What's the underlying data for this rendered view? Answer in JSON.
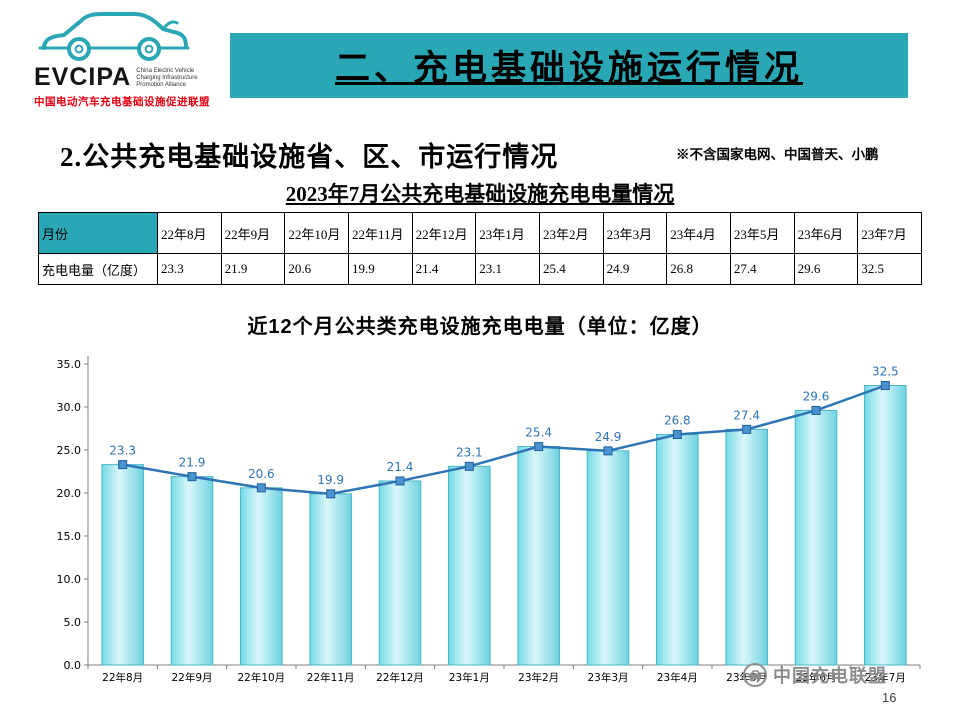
{
  "logo": {
    "acronym": "EVCIPA",
    "org_en": "China Electric Vehicle Charging Infrastructure Promotion Alliance",
    "org_cn": "中国电动汽车充电基础设施促进联盟"
  },
  "banner": {
    "title": "二、充电基础设施运行情况"
  },
  "subtitle": {
    "text": "2.公共充电基础设施省、区、市运行情况",
    "note": "※不含国家电网、中国普天、小鹏"
  },
  "table": {
    "title": "2023年7月公共充电基础设施充电电量情况",
    "row_headers": [
      "月份",
      "充电电量（亿度）"
    ],
    "columns": [
      "22年8月",
      "22年9月",
      "22年10月",
      "22年11月",
      "22年12月",
      "23年1月",
      "23年2月",
      "23年3月",
      "23年4月",
      "23年5月",
      "23年6月",
      "23年7月"
    ],
    "values": [
      "23.3",
      "21.9",
      "20.6",
      "19.9",
      "21.4",
      "23.1",
      "25.4",
      "24.9",
      "26.8",
      "27.4",
      "29.6",
      "32.5"
    ]
  },
  "chart_data": {
    "type": "bar",
    "title": "近12个月公共类充电设施充电电量（单位：亿度）",
    "categories": [
      "22年8月",
      "22年9月",
      "22年10月",
      "22年11月",
      "22年12月",
      "23年1月",
      "23年2月",
      "23年3月",
      "23年4月",
      "23年5月",
      "23年6月",
      "23年7月"
    ],
    "values": [
      23.3,
      21.9,
      20.6,
      19.9,
      21.4,
      23.1,
      25.4,
      24.9,
      26.8,
      27.4,
      29.6,
      32.5
    ],
    "overlay_line": true,
    "xlabel": "",
    "ylabel": "",
    "ylim": [
      0,
      35
    ],
    "ytick_step": 5,
    "grid": false,
    "legend": "none",
    "bar_color": "#8fe1ec",
    "bar_edge_color": "#49b6c8",
    "line_color": "#2e75b6",
    "label_color": "#2e75b6"
  },
  "footer": {
    "watermark": "中国充电联盟",
    "page_number": "16"
  }
}
